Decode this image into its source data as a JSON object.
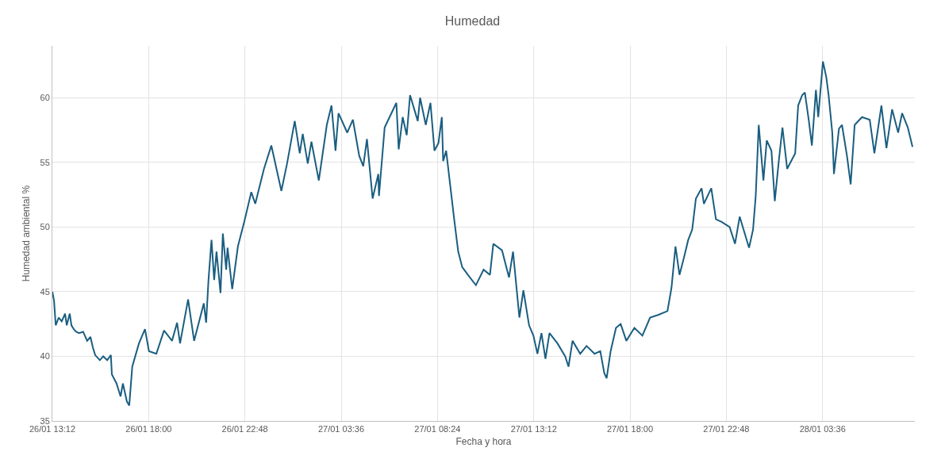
{
  "chart_data": {
    "type": "line",
    "title": "Humedad",
    "xlabel": "Fecha y hora",
    "ylabel": "Humedad ambiental %",
    "x": [
      "--01-26T13:12",
      "--01-26T13:17",
      "--01-26T13:22",
      "--01-26T13:31",
      "--01-26T13:40",
      "--01-26T13:50",
      "--01-26T13:55",
      "--01-26T14:04",
      "--01-26T14:09",
      "--01-26T14:16",
      "--01-26T14:23",
      "--01-26T14:32",
      "--01-26T14:44",
      "--01-26T14:56",
      "--01-26T15:06",
      "--01-26T15:13",
      "--01-26T15:20",
      "--01-26T15:34",
      "--01-26T15:44",
      "--01-26T15:56",
      "--01-26T16:07",
      "--01-26T16:10",
      "--01-26T16:24",
      "--01-26T16:36",
      "--01-26T16:43",
      "--01-26T16:55",
      "--01-26T17:02",
      "--01-26T17:11",
      "--01-26T17:31",
      "--01-26T17:49",
      "--01-26T18:01",
      "--01-26T18:23",
      "--01-26T18:46",
      "--01-26T19:10",
      "--01-26T19:25",
      "--01-26T19:34",
      "--01-26T19:58",
      "--01-26T20:16",
      "--01-26T20:45",
      "--01-26T20:52",
      "--01-26T20:59",
      "--01-26T21:08",
      "--01-26T21:16",
      "--01-26T21:23",
      "--01-26T21:35",
      "--01-26T21:42",
      "--01-26T21:52",
      "--01-26T21:56",
      "--01-26T22:10",
      "--01-26T22:27",
      "--01-26T22:46",
      "--01-26T23:07",
      "--01-26T23:19",
      "--01-26T23:45",
      "--01-27T00:07",
      "--01-27T00:37",
      "--01-27T00:54",
      "--01-27T01:17",
      "--01-27T01:32",
      "--01-27T01:41",
      "--01-27T01:56",
      "--01-27T02:07",
      "--01-27T02:29",
      "--01-27T02:53",
      "--01-27T03:07",
      "--01-27T03:19",
      "--01-27T03:28",
      "--01-27T03:54",
      "--01-27T04:11",
      "--01-27T04:30",
      "--01-27T04:42",
      "--01-27T04:53",
      "--01-27T05:10",
      "--01-27T05:27",
      "--01-27T05:29",
      "--01-27T05:46",
      "--01-27T06:10",
      "--01-27T06:21",
      "--01-27T06:28",
      "--01-27T06:40",
      "--01-27T06:52",
      "--01-27T07:02",
      "--01-27T07:25",
      "--01-27T07:32",
      "--01-27T07:49",
      "--01-27T08:03",
      "--01-27T08:15",
      "--01-27T08:27",
      "--01-27T08:37",
      "--01-27T08:41",
      "--01-27T08:50",
      "--01-27T09:14",
      "--01-27T09:26",
      "--01-27T09:38",
      "--01-27T09:55",
      "--01-27T10:19",
      "--01-27T10:42",
      "--01-27T11:01",
      "--01-27T11:11",
      "--01-27T11:37",
      "--01-27T11:58",
      "--01-27T12:10",
      "--01-27T12:29",
      "--01-27T12:41",
      "--01-27T12:58",
      "--01-27T13:11",
      "--01-27T13:23",
      "--01-27T13:35",
      "--01-27T13:47",
      "--01-27T13:59",
      "--01-27T14:23",
      "--01-27T14:46",
      "--01-27T14:56",
      "--01-27T15:08",
      "--01-27T15:31",
      "--01-27T15:50",
      "--01-27T16:14",
      "--01-27T16:31",
      "--01-27T16:43",
      "--01-27T16:50",
      "--01-27T17:02",
      "--01-27T17:18",
      "--01-27T17:32",
      "--01-27T17:49",
      "--01-27T18:13",
      "--01-27T18:37",
      "--01-27T19:00",
      "--01-27T19:24",
      "--01-27T19:52",
      "--01-27T20:04",
      "--01-27T20:16",
      "--01-27T20:28",
      "--01-27T20:42",
      "--01-27T20:54",
      "--01-27T21:06",
      "--01-27T21:17",
      "--01-27T21:34",
      "--01-27T21:41",
      "--01-27T22:03",
      "--01-27T22:17",
      "--01-27T22:34",
      "--01-27T22:58",
      "--01-27T23:14",
      "--01-27T23:28",
      "--01-27T23:56",
      "--01-28T00:08",
      "--01-28T00:16",
      "--01-28T00:25",
      "--01-28T00:39",
      "--01-28T00:49",
      "--01-28T01:03",
      "--01-28T01:13",
      "--01-28T01:25",
      "--01-28T01:36",
      "--01-28T01:50",
      "--01-28T02:14",
      "--01-28T02:23",
      "--01-28T02:35",
      "--01-28T02:43",
      "--01-28T02:55",
      "--01-28T03:04",
      "--01-28T03:16",
      "--01-28T03:23",
      "--01-28T03:37",
      "--01-28T03:47",
      "--01-28T03:54",
      "--01-28T04:05",
      "--01-28T04:10",
      "--01-28T04:25",
      "--01-28T04:34",
      "--01-28T04:49",
      "--01-28T05:00",
      "--01-28T05:12",
      "--01-28T05:34",
      "--01-28T05:57",
      "--01-28T06:11",
      "--01-28T06:32",
      "--01-28T06:47",
      "--01-28T07:04",
      "--01-28T07:22",
      "--01-28T07:34",
      "--01-28T07:51",
      "--01-28T08:05"
    ],
    "series": [
      {
        "color": "#1a5e80",
        "values": [
          45.0,
          44.3,
          42.4,
          43.0,
          42.7,
          43.3,
          42.4,
          43.3,
          42.4,
          42.1,
          41.9,
          41.8,
          41.9,
          41.2,
          41.5,
          40.7,
          40.1,
          39.7,
          40.0,
          39.7,
          40.1,
          38.6,
          37.9,
          36.9,
          37.9,
          36.5,
          36.2,
          39.2,
          41.0,
          42.1,
          40.4,
          40.2,
          42.0,
          41.2,
          42.6,
          41.0,
          44.4,
          41.2,
          44.1,
          42.6,
          45.9,
          49.0,
          45.9,
          48.1,
          44.9,
          49.5,
          46.7,
          48.4,
          45.2,
          48.5,
          50.4,
          52.7,
          51.8,
          54.5,
          56.3,
          52.8,
          54.9,
          58.2,
          55.7,
          57.2,
          54.9,
          56.6,
          53.6,
          57.9,
          59.4,
          55.9,
          58.8,
          57.3,
          58.3,
          55.5,
          54.7,
          56.8,
          52.2,
          54.1,
          52.4,
          57.7,
          59.0,
          59.6,
          56.0,
          58.5,
          57.1,
          60.2,
          58.2,
          60.0,
          57.9,
          59.6,
          55.9,
          56.5,
          58.5,
          55.1,
          55.9,
          50.6,
          48.1,
          46.9,
          46.3,
          45.5,
          46.7,
          46.3,
          48.7,
          48.2,
          46.1,
          48.1,
          43.0,
          45.1,
          42.4,
          41.6,
          40.2,
          41.8,
          39.8,
          41.8,
          41.0,
          40.0,
          39.2,
          41.2,
          40.2,
          40.8,
          40.2,
          40.4,
          38.7,
          38.3,
          40.4,
          42.2,
          42.5,
          41.2,
          42.2,
          41.6,
          43.0,
          43.2,
          43.5,
          45.3,
          48.5,
          46.3,
          47.7,
          49.0,
          49.8,
          52.2,
          53.0,
          51.8,
          53.0,
          50.6,
          50.4,
          50.0,
          48.7,
          50.8,
          48.4,
          49.8,
          52.4,
          57.9,
          53.6,
          56.7,
          55.9,
          52.0,
          55.1,
          57.7,
          54.5,
          55.7,
          59.4,
          60.2,
          60.4,
          58.2,
          56.3,
          60.6,
          58.5,
          62.8,
          61.6,
          60.2,
          57.3,
          54.1,
          57.6,
          57.9,
          55.5,
          53.3,
          57.9,
          58.5,
          58.3,
          55.7,
          59.4,
          56.1,
          59.1,
          57.3,
          58.8,
          57.7,
          56.2
        ]
      }
    ],
    "xlim": [
      "--01-26T13:12",
      "--01-28T08:12"
    ],
    "xticks": [
      {
        "value": "--01-26T13:12",
        "label": "26/01 13:12"
      },
      {
        "value": "--01-26T18:00",
        "label": "26/01 18:00"
      },
      {
        "value": "--01-26T22:48",
        "label": "26/01 22:48"
      },
      {
        "value": "--01-27T03:36",
        "label": "27/01 03:36"
      },
      {
        "value": "--01-27T08:24",
        "label": "27/01 08:24"
      },
      {
        "value": "--01-27T13:12",
        "label": "27/01 13:12"
      },
      {
        "value": "--01-27T18:00",
        "label": "27/01 18:00"
      },
      {
        "value": "--01-27T22:48",
        "label": "27/01 22:48"
      },
      {
        "value": "--01-28T03:36",
        "label": "28/01 03:36"
      }
    ],
    "ylim": [
      35,
      64
    ],
    "yticks": [
      35,
      40,
      45,
      50,
      55,
      60
    ],
    "grid": true,
    "marker": "none",
    "line_style": "solid"
  }
}
